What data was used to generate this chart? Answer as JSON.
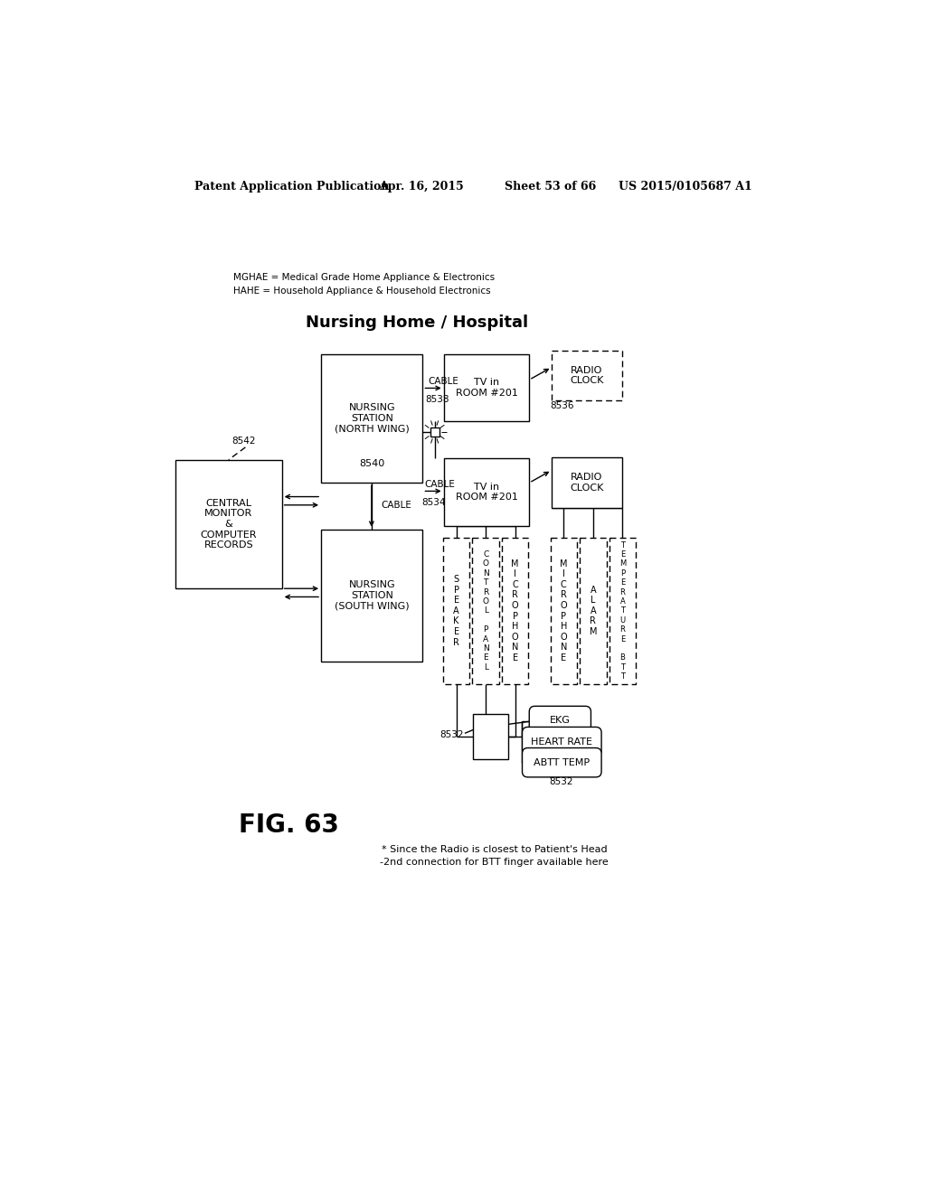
{
  "bg_color": "#ffffff",
  "header_line1": "Patent Application Publication",
  "header_date": "Apr. 16, 2015",
  "header_sheet": "Sheet 53 of 66",
  "header_patent": "US 2015/0105687 A1",
  "legend_line1": "MGHAE = Medical Grade Home Appliance & Electronics",
  "legend_line2": "HAHE = Household Appliance & Household Electronics",
  "title": "Nursing Home / Hospital",
  "fig_label": "FIG. 63",
  "footnote_line1": "* Since the Radio is closest to Patient's Head",
  "footnote_line2": "-2nd connection for BTT finger available here"
}
